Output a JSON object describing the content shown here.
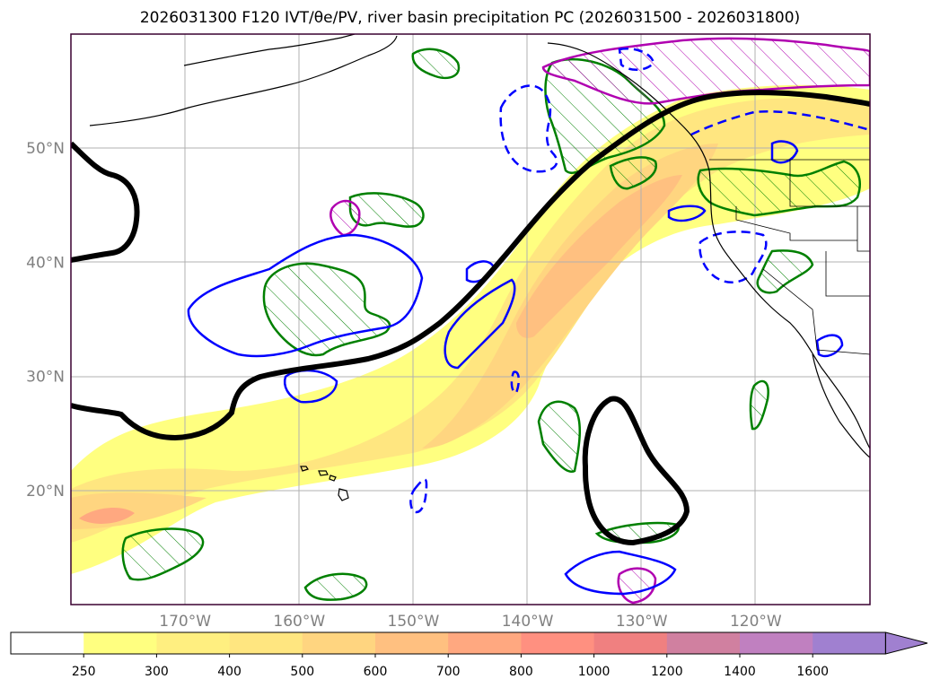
{
  "title": "2026031300 F120 IVT/θe/PV, river basin precipitation PC (2026031500 - 2026031800)",
  "map": {
    "lon_range": [
      -180,
      -110
    ],
    "lat_range": [
      10,
      60
    ],
    "lat_ticks": [
      {
        "value": 20,
        "label": "20°N"
      },
      {
        "value": 30,
        "label": "30°N"
      },
      {
        "value": 40,
        "label": "40°N"
      },
      {
        "value": 50,
        "label": "50°N"
      }
    ],
    "lon_ticks": [
      {
        "value": -170,
        "label": "170°W"
      },
      {
        "value": -160,
        "label": "160°W"
      },
      {
        "value": -150,
        "label": "150°W"
      },
      {
        "value": -140,
        "label": "140°W"
      },
      {
        "value": -130,
        "label": "130°W"
      },
      {
        "value": -120,
        "label": "120°W"
      }
    ],
    "grid": true
  },
  "colorbar": {
    "levels": [
      "250",
      "300",
      "400",
      "500",
      "600",
      "700",
      "800",
      "1000",
      "1200",
      "1400",
      "1600"
    ],
    "colors": [
      "#ffffff",
      "#ffff80",
      "#ffef80",
      "#ffe680",
      "#ffd580",
      "#ffc080",
      "#ffa880",
      "#ff9080",
      "#f08080",
      "#d080a0",
      "#c080c0",
      "#a080d0"
    ],
    "extend": "max"
  },
  "colors": {
    "ivt_contour": "#000000",
    "positive_contour": "#008000",
    "negative_contour": "#0000ff",
    "pv_contour": "#b000b0",
    "coast": "#000000",
    "grid": "#b0b0b0"
  }
}
